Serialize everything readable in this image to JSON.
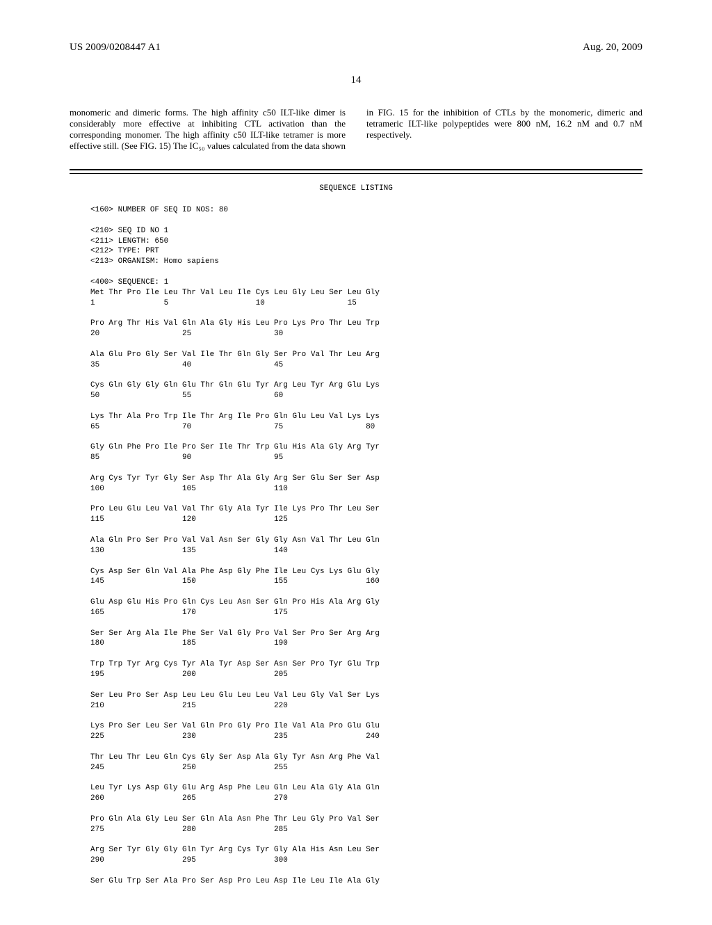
{
  "header": {
    "left": "US 2009/0208447 A1",
    "right": "Aug. 20, 2009"
  },
  "page_number": "14",
  "body_paragraph": "monomeric and dimeric forms. The high affinity c50 ILT-like dimer is considerably more effective at inhibiting CTL activation than the corresponding monomer. The high affinity c50 ILT-like tetramer is more effective still. (See FIG. 15) The IC₅₀ values calculated from the data shown in FIG. 15 for the inhibition of CTLs by the monomeric, dimeric and tetrameric ILT-like polypeptides were 800 nM, 16.2 nM and 0.7 nM respectively.",
  "seq_title": "SEQUENCE LISTING",
  "seq_meta": "<160> NUMBER OF SEQ ID NOS: 80\n\n<210> SEQ ID NO 1\n<211> LENGTH: 650\n<212> TYPE: PRT\n<213> ORGANISM: Homo sapiens\n\n<400> SEQUENCE: 1\n",
  "sequence_rows": [
    {
      "residues": [
        "Met",
        "Thr",
        "Pro",
        "Ile",
        "Leu",
        "Thr",
        "Val",
        "Leu",
        "Ile",
        "Cys",
        "Leu",
        "Gly",
        "Leu",
        "Ser",
        "Leu",
        "Gly"
      ],
      "nums": {
        "0": "1",
        "4": "5",
        "9": "10",
        "14": "15"
      }
    },
    {
      "residues": [
        "Pro",
        "Arg",
        "Thr",
        "His",
        "Val",
        "Gln",
        "Ala",
        "Gly",
        "His",
        "Leu",
        "Pro",
        "Lys",
        "Pro",
        "Thr",
        "Leu",
        "Trp"
      ],
      "nums": {
        "0": "20",
        "5": "25",
        "10": "30"
      }
    },
    {
      "residues": [
        "Ala",
        "Glu",
        "Pro",
        "Gly",
        "Ser",
        "Val",
        "Ile",
        "Thr",
        "Gln",
        "Gly",
        "Ser",
        "Pro",
        "Val",
        "Thr",
        "Leu",
        "Arg"
      ],
      "nums": {
        "0": "35",
        "5": "40",
        "10": "45"
      }
    },
    {
      "residues": [
        "Cys",
        "Gln",
        "Gly",
        "Gly",
        "Gln",
        "Glu",
        "Thr",
        "Gln",
        "Glu",
        "Tyr",
        "Arg",
        "Leu",
        "Tyr",
        "Arg",
        "Glu",
        "Lys"
      ],
      "nums": {
        "0": "50",
        "5": "55",
        "10": "60"
      }
    },
    {
      "residues": [
        "Lys",
        "Thr",
        "Ala",
        "Pro",
        "Trp",
        "Ile",
        "Thr",
        "Arg",
        "Ile",
        "Pro",
        "Gln",
        "Glu",
        "Leu",
        "Val",
        "Lys",
        "Lys"
      ],
      "nums": {
        "0": "65",
        "5": "70",
        "10": "75",
        "15": "80"
      }
    },
    {
      "residues": [
        "Gly",
        "Gln",
        "Phe",
        "Pro",
        "Ile",
        "Pro",
        "Ser",
        "Ile",
        "Thr",
        "Trp",
        "Glu",
        "His",
        "Ala",
        "Gly",
        "Arg",
        "Tyr"
      ],
      "nums": {
        "0": "85",
        "5": "90",
        "10": "95"
      }
    },
    {
      "residues": [
        "Arg",
        "Cys",
        "Tyr",
        "Tyr",
        "Gly",
        "Ser",
        "Asp",
        "Thr",
        "Ala",
        "Gly",
        "Arg",
        "Ser",
        "Glu",
        "Ser",
        "Ser",
        "Asp"
      ],
      "nums": {
        "0": "100",
        "5": "105",
        "10": "110"
      }
    },
    {
      "residues": [
        "Pro",
        "Leu",
        "Glu",
        "Leu",
        "Val",
        "Val",
        "Thr",
        "Gly",
        "Ala",
        "Tyr",
        "Ile",
        "Lys",
        "Pro",
        "Thr",
        "Leu",
        "Ser"
      ],
      "nums": {
        "0": "115",
        "5": "120",
        "10": "125"
      }
    },
    {
      "residues": [
        "Ala",
        "Gln",
        "Pro",
        "Ser",
        "Pro",
        "Val",
        "Val",
        "Asn",
        "Ser",
        "Gly",
        "Gly",
        "Asn",
        "Val",
        "Thr",
        "Leu",
        "Gln"
      ],
      "nums": {
        "0": "130",
        "5": "135",
        "10": "140"
      }
    },
    {
      "residues": [
        "Cys",
        "Asp",
        "Ser",
        "Gln",
        "Val",
        "Ala",
        "Phe",
        "Asp",
        "Gly",
        "Phe",
        "Ile",
        "Leu",
        "Cys",
        "Lys",
        "Glu",
        "Gly"
      ],
      "nums": {
        "0": "145",
        "5": "150",
        "10": "155",
        "15": "160"
      }
    },
    {
      "residues": [
        "Glu",
        "Asp",
        "Glu",
        "His",
        "Pro",
        "Gln",
        "Cys",
        "Leu",
        "Asn",
        "Ser",
        "Gln",
        "Pro",
        "His",
        "Ala",
        "Arg",
        "Gly"
      ],
      "nums": {
        "0": "165",
        "5": "170",
        "10": "175"
      }
    },
    {
      "residues": [
        "Ser",
        "Ser",
        "Arg",
        "Ala",
        "Ile",
        "Phe",
        "Ser",
        "Val",
        "Gly",
        "Pro",
        "Val",
        "Ser",
        "Pro",
        "Ser",
        "Arg",
        "Arg"
      ],
      "nums": {
        "0": "180",
        "5": "185",
        "10": "190"
      }
    },
    {
      "residues": [
        "Trp",
        "Trp",
        "Tyr",
        "Arg",
        "Cys",
        "Tyr",
        "Ala",
        "Tyr",
        "Asp",
        "Ser",
        "Asn",
        "Ser",
        "Pro",
        "Tyr",
        "Glu",
        "Trp"
      ],
      "nums": {
        "0": "195",
        "5": "200",
        "10": "205"
      }
    },
    {
      "residues": [
        "Ser",
        "Leu",
        "Pro",
        "Ser",
        "Asp",
        "Leu",
        "Leu",
        "Glu",
        "Leu",
        "Leu",
        "Val",
        "Leu",
        "Gly",
        "Val",
        "Ser",
        "Lys"
      ],
      "nums": {
        "0": "210",
        "5": "215",
        "10": "220"
      }
    },
    {
      "residues": [
        "Lys",
        "Pro",
        "Ser",
        "Leu",
        "Ser",
        "Val",
        "Gln",
        "Pro",
        "Gly",
        "Pro",
        "Ile",
        "Val",
        "Ala",
        "Pro",
        "Glu",
        "Glu"
      ],
      "nums": {
        "0": "225",
        "5": "230",
        "10": "235",
        "15": "240"
      }
    },
    {
      "residues": [
        "Thr",
        "Leu",
        "Thr",
        "Leu",
        "Gln",
        "Cys",
        "Gly",
        "Ser",
        "Asp",
        "Ala",
        "Gly",
        "Tyr",
        "Asn",
        "Arg",
        "Phe",
        "Val"
      ],
      "nums": {
        "0": "245",
        "5": "250",
        "10": "255"
      }
    },
    {
      "residues": [
        "Leu",
        "Tyr",
        "Lys",
        "Asp",
        "Gly",
        "Glu",
        "Arg",
        "Asp",
        "Phe",
        "Leu",
        "Gln",
        "Leu",
        "Ala",
        "Gly",
        "Ala",
        "Gln"
      ],
      "nums": {
        "0": "260",
        "5": "265",
        "10": "270"
      }
    },
    {
      "residues": [
        "Pro",
        "Gln",
        "Ala",
        "Gly",
        "Leu",
        "Ser",
        "Gln",
        "Ala",
        "Asn",
        "Phe",
        "Thr",
        "Leu",
        "Gly",
        "Pro",
        "Val",
        "Ser"
      ],
      "nums": {
        "0": "275",
        "5": "280",
        "10": "285"
      }
    },
    {
      "residues": [
        "Arg",
        "Ser",
        "Tyr",
        "Gly",
        "Gly",
        "Gln",
        "Tyr",
        "Arg",
        "Cys",
        "Tyr",
        "Gly",
        "Ala",
        "His",
        "Asn",
        "Leu",
        "Ser"
      ],
      "nums": {
        "0": "290",
        "5": "295",
        "10": "300"
      }
    },
    {
      "residues": [
        "Ser",
        "Glu",
        "Trp",
        "Ser",
        "Ala",
        "Pro",
        "Ser",
        "Asp",
        "Pro",
        "Leu",
        "Asp",
        "Ile",
        "Leu",
        "Ile",
        "Ala",
        "Gly"
      ],
      "nums": {}
    }
  ],
  "styling": {
    "font_serif": "Times New Roman",
    "font_mono": "Courier New",
    "body_font_size_pt": 13,
    "mono_font_size_pt": 11,
    "background": "#ffffff",
    "text_color": "#000000",
    "col_width_chars": 4
  }
}
